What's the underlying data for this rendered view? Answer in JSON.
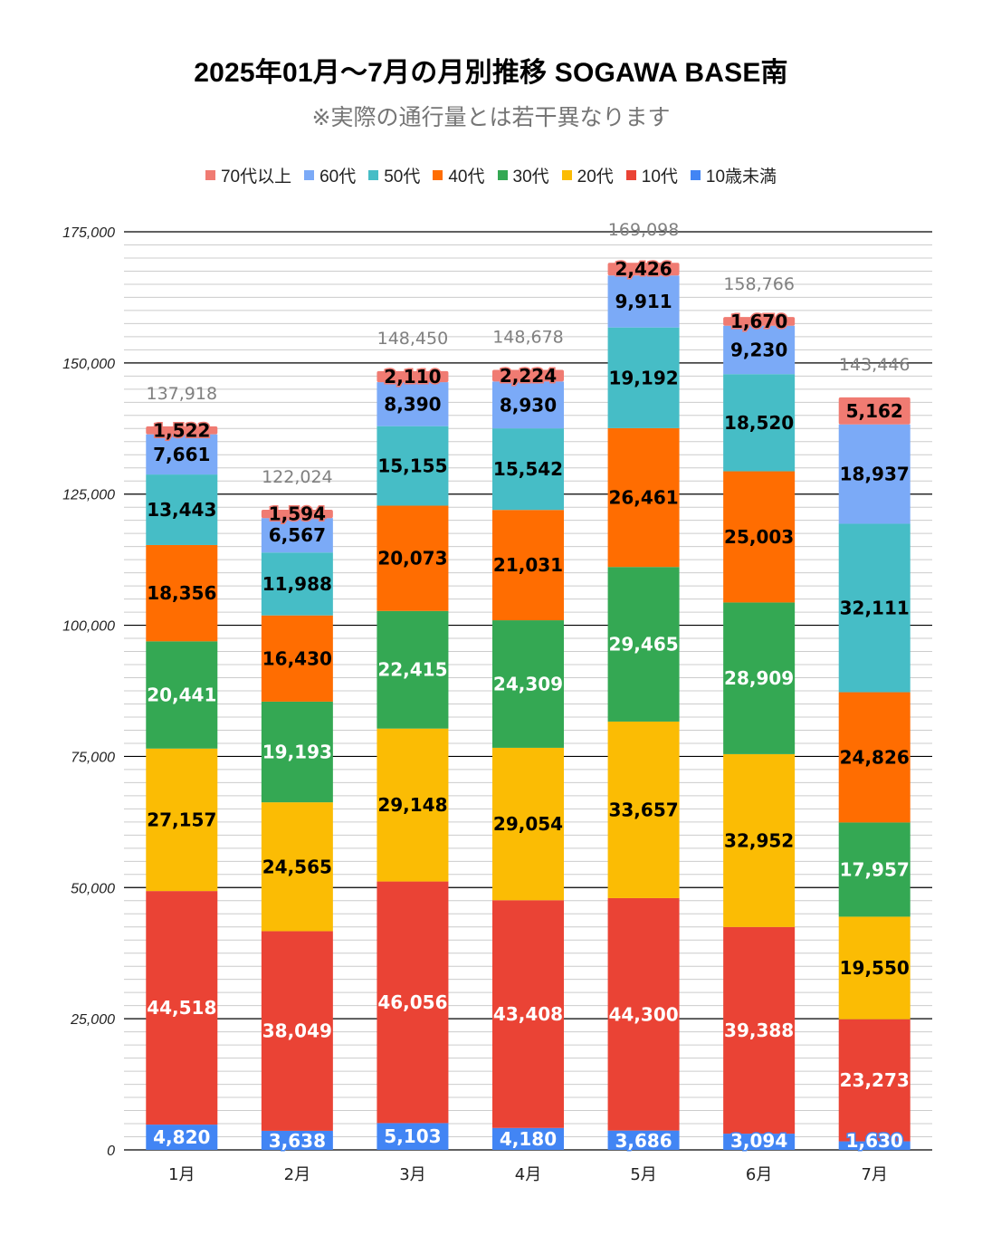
{
  "chart_data": {
    "type": "bar",
    "stacked": true,
    "title": "2025年01月～7月の月別推移  SOGAWA  BASE南",
    "subtitle": "※実際の通行量とは若干異なります",
    "xlabel": "",
    "ylabel": "",
    "ylim": [
      0,
      175000
    ],
    "yticks": [
      "0",
      "25,000",
      "50,000",
      "75,000",
      "100,000",
      "125,000",
      "150,000",
      "175,000"
    ],
    "grid": true,
    "legend_position": "top",
    "categories": [
      "1月",
      "2月",
      "3月",
      "4月",
      "5月",
      "6月",
      "7月"
    ],
    "series": [
      {
        "name": "10歳未満",
        "color": "#4285f4",
        "label_color": "#ffffff",
        "values": [
          4820,
          3638,
          5103,
          4180,
          3686,
          3094,
          1630
        ],
        "labels": [
          "4,820",
          "3,638",
          "5,103",
          "4,180",
          "3,686",
          "3,094",
          "1,630"
        ]
      },
      {
        "name": "10代",
        "color": "#ea4335",
        "label_color": "#ffffff",
        "values": [
          44518,
          38049,
          46056,
          43408,
          44300,
          39388,
          23273
        ],
        "labels": [
          "44,518",
          "38,049",
          "46,056",
          "43,408",
          "44,300",
          "39,388",
          "23,273"
        ]
      },
      {
        "name": "20代",
        "color": "#fbbc04",
        "label_color": "#000000",
        "values": [
          27157,
          24565,
          29148,
          29054,
          33657,
          32952,
          19550
        ],
        "labels": [
          "27,157",
          "24,565",
          "29,148",
          "29,054",
          "33,657",
          "32,952",
          "19,550"
        ]
      },
      {
        "name": "30代",
        "color": "#34a853",
        "label_color": "#ffffff",
        "values": [
          20441,
          19193,
          22415,
          24309,
          29465,
          28909,
          17957
        ],
        "labels": [
          "20,441",
          "19,193",
          "22,415",
          "24,309",
          "29,465",
          "28,909",
          "17,957"
        ]
      },
      {
        "name": "40代",
        "color": "#ff6d01",
        "label_color": "#000000",
        "values": [
          18356,
          16430,
          20073,
          21031,
          26461,
          25003,
          24826
        ],
        "labels": [
          "18,356",
          "16,430",
          "20,073",
          "21,031",
          "26,461",
          "25,003",
          "24,826"
        ]
      },
      {
        "name": "50代",
        "color": "#46bdc6",
        "label_color": "#000000",
        "values": [
          13443,
          11988,
          15155,
          15542,
          19192,
          18520,
          32111
        ],
        "labels": [
          "13,443",
          "11,988",
          "15,155",
          "15,542",
          "19,192",
          "18,520",
          "32,111"
        ]
      },
      {
        "name": "60代",
        "color": "#7baaf7",
        "label_color": "#000000",
        "values": [
          7661,
          6567,
          8390,
          8930,
          9911,
          9230,
          18937
        ],
        "labels": [
          "7,661",
          "6,567",
          "8,390",
          "8,930",
          "9,911",
          "9,230",
          "18,937"
        ]
      },
      {
        "name": "70代以上",
        "color": "#f07b72",
        "label_color": "#000000",
        "values": [
          1522,
          1594,
          2110,
          2224,
          2426,
          1670,
          5162
        ],
        "labels": [
          "1,522",
          "1,594",
          "2,110",
          "2,224",
          "2,426",
          "1,670",
          "5,162"
        ]
      }
    ],
    "totals": [
      137918,
      122024,
      148450,
      148678,
      169098,
      158766,
      143446
    ],
    "total_labels": [
      "137,918",
      "122,024",
      "148,450",
      "148,678",
      "169,098",
      "158,766",
      "143,446"
    ],
    "legend_order": [
      "70代以上",
      "60代",
      "50代",
      "40代",
      "30代",
      "20代",
      "10代",
      "10歳未満"
    ]
  }
}
